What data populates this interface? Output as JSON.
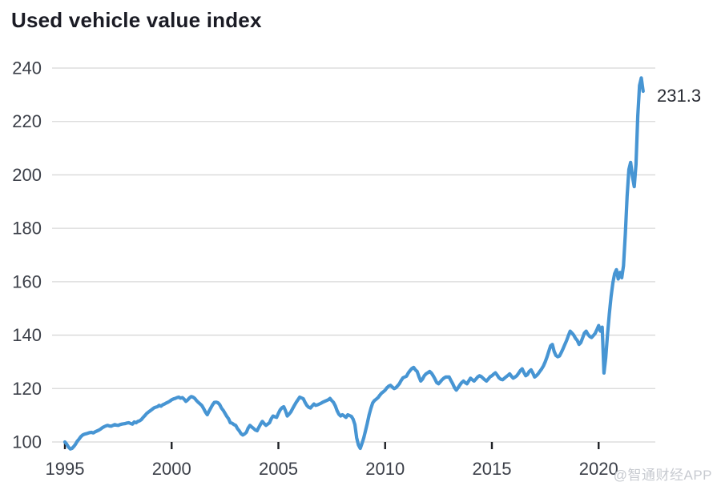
{
  "title": "Used vehicle value index",
  "watermark": "@智通财经APP",
  "colors": {
    "line": "#4795d3",
    "grid": "#d8d8d8",
    "tick": "#1f2126",
    "axis_label": "#3b3f48",
    "title": "#1a1b24",
    "annotation": "#282b33",
    "watermark": "#c7cad0",
    "background": "#ffffff"
  },
  "chart_data": {
    "type": "line",
    "title": "Used vehicle value index",
    "xlabel": "",
    "ylabel": "",
    "grid": true,
    "legend": "none",
    "ylim": [
      100,
      240
    ],
    "y_ticks": [
      100,
      120,
      140,
      160,
      180,
      200,
      220,
      240
    ],
    "x_tick_years": [
      1995,
      2000,
      2005,
      2010,
      2015,
      2020
    ],
    "x_tick_labels": [
      "1995",
      "2000",
      "2005",
      "2010",
      "2015",
      "2020"
    ],
    "x_start_year": 1995,
    "interval_months": 1,
    "end_label": "231.3",
    "end_value": 231.3,
    "values": [
      100.0,
      99.2,
      98.1,
      97.4,
      97.6,
      98.3,
      99.2,
      100.3,
      101.1,
      102.0,
      102.6,
      102.9,
      103.1,
      103.3,
      103.5,
      103.6,
      103.4,
      103.8,
      104.1,
      104.4,
      104.8,
      105.3,
      105.7,
      106.0,
      106.2,
      106.0,
      105.9,
      106.2,
      106.5,
      106.3,
      106.2,
      106.5,
      106.7,
      106.8,
      106.9,
      107.1,
      107.2,
      106.9,
      106.7,
      107.5,
      107.2,
      107.7,
      107.9,
      108.4,
      109.2,
      109.9,
      110.7,
      111.2,
      111.7,
      112.2,
      112.7,
      113.0,
      113.2,
      113.7,
      113.4,
      113.9,
      114.2,
      114.6,
      114.9,
      115.3,
      115.8,
      116.1,
      116.3,
      116.6,
      116.8,
      116.4,
      116.6,
      116.0,
      115.2,
      115.7,
      116.5,
      117.0,
      116.8,
      116.3,
      115.5,
      114.8,
      114.2,
      113.6,
      112.5,
      111.2,
      110.2,
      111.5,
      112.7,
      113.9,
      114.8,
      114.9,
      114.7,
      114.0,
      112.7,
      111.8,
      110.7,
      109.6,
      108.7,
      107.2,
      107.0,
      106.5,
      106.2,
      105.0,
      104.2,
      103.1,
      102.6,
      103.0,
      103.6,
      105.2,
      106.2,
      105.6,
      105.1,
      104.5,
      104.2,
      105.5,
      106.7,
      107.7,
      106.9,
      106.2,
      106.7,
      107.2,
      108.7,
      109.7,
      109.4,
      109.2,
      110.7,
      112.0,
      112.8,
      113.2,
      111.7,
      109.7,
      110.4,
      111.2,
      112.5,
      113.7,
      114.8,
      115.8,
      116.8,
      116.5,
      116.2,
      114.8,
      113.7,
      113.0,
      112.7,
      113.5,
      114.2,
      113.7,
      113.9,
      114.2,
      114.5,
      114.9,
      115.2,
      115.5,
      115.8,
      116.3,
      115.5,
      114.8,
      113.5,
      111.7,
      110.4,
      109.7,
      110.2,
      109.7,
      109.2,
      110.2,
      109.9,
      109.6,
      108.5,
      106.5,
      101.6,
      98.9,
      97.6,
      99.5,
      101.6,
      104.3,
      107.0,
      110.2,
      112.6,
      114.6,
      115.5,
      116.0,
      116.6,
      117.5,
      118.3,
      118.8,
      119.4,
      120.3,
      120.9,
      121.2,
      120.6,
      120.0,
      120.3,
      121.0,
      121.8,
      123.0,
      124.0,
      124.3,
      124.6,
      125.8,
      126.7,
      127.5,
      127.9,
      127.0,
      126.4,
      124.5,
      122.8,
      123.5,
      124.8,
      125.5,
      125.9,
      126.4,
      125.8,
      124.8,
      123.6,
      122.2,
      121.8,
      122.5,
      123.3,
      123.9,
      124.3,
      124.3,
      124.3,
      123.0,
      121.8,
      120.3,
      119.4,
      120.3,
      121.3,
      122.2,
      122.8,
      122.2,
      121.8,
      122.8,
      123.9,
      123.3,
      122.8,
      123.5,
      124.3,
      124.8,
      124.5,
      123.9,
      123.3,
      122.8,
      123.6,
      124.4,
      124.8,
      125.4,
      125.9,
      125.0,
      124.0,
      123.5,
      123.3,
      123.8,
      124.4,
      124.9,
      125.5,
      124.6,
      123.9,
      124.3,
      124.8,
      125.7,
      126.7,
      127.4,
      126.0,
      124.8,
      125.2,
      126.4,
      127.0,
      125.8,
      124.3,
      124.8,
      125.5,
      126.5,
      127.4,
      128.5,
      130.0,
      131.8,
      134.0,
      136.0,
      136.5,
      133.9,
      132.4,
      131.9,
      132.2,
      133.5,
      134.9,
      136.5,
      138.0,
      139.8,
      141.5,
      140.8,
      140.0,
      138.8,
      138.0,
      136.5,
      137.2,
      139.0,
      140.8,
      141.5,
      140.3,
      139.5,
      139.1,
      139.8,
      140.6,
      142.0,
      143.6,
      141.5,
      143.0,
      125.8,
      131.5,
      140.5,
      148.0,
      154.5,
      159.5,
      163.0,
      164.5,
      161.0,
      163.5,
      161.5,
      166.0,
      178.0,
      192.0,
      202.0,
      204.7,
      199.5,
      195.6,
      204.0,
      222.0,
      233.5,
      236.3,
      231.3
    ]
  }
}
